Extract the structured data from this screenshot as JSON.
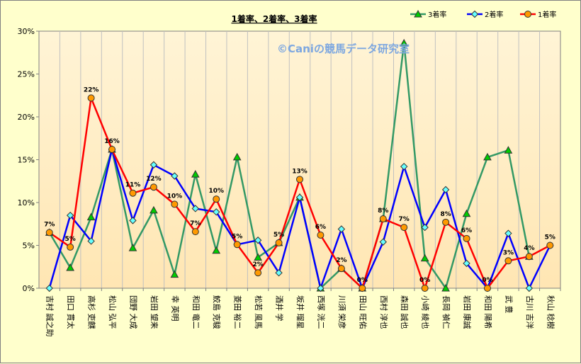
{
  "chart_data": {
    "type": "line",
    "title": "1着率、2着率、3着率",
    "watermark": "©Caniの競馬データ研究室",
    "ylim": [
      0,
      30
    ],
    "yticks": [
      "0%",
      "5%",
      "10%",
      "15%",
      "20%",
      "25%",
      "30%"
    ],
    "categories": [
      "吉村 誠之助",
      "田口 貫太",
      "高杉 吏麒",
      "松山 弘平",
      "団野 大成",
      "岩田 望来",
      "幸 英明",
      "和田 竜二",
      "鮫島 克駿",
      "菱田 裕二",
      "松若 風馬",
      "酒井 学",
      "坂井 瑠星",
      "西塚 洸二",
      "川須 栄彦",
      "田山 旺佑",
      "西村 淳也",
      "森田 誠也",
      "小崎 綾也",
      "長岡 禎仁",
      "岩田 康誠",
      "和田 陽希",
      "武 豊",
      "古川 吉洋",
      "秋山 稔樹"
    ],
    "series": [
      {
        "name": "3着率",
        "color": "#339966",
        "marker": "triangle",
        "marker_fill": "#00cc00",
        "values": [
          6.5,
          2.4,
          8.3,
          16.2,
          4.7,
          9.1,
          1.6,
          13.3,
          4.4,
          15.3,
          3.6,
          5.3,
          10.6,
          0,
          2.3,
          0,
          8.1,
          28.6,
          3.5,
          0,
          8.7,
          15.3,
          16.1,
          3.7,
          null
        ]
      },
      {
        "name": "2着率",
        "color": "#0000ff",
        "marker": "diamond",
        "marker_fill": "#66ffff",
        "values": [
          0,
          8.5,
          5.5,
          16.2,
          7.9,
          14.4,
          13.1,
          9.3,
          8.9,
          5.1,
          5.6,
          1.8,
          10.6,
          0,
          6.9,
          0,
          5.4,
          14.2,
          7.1,
          11.5,
          2.9,
          0,
          6.4,
          0,
          5.0
        ]
      },
      {
        "name": "1着率",
        "color": "#ff0000",
        "marker": "circle",
        "marker_fill": "#ff9900",
        "values": [
          6.5,
          4.8,
          22.2,
          16.2,
          11.1,
          11.8,
          9.8,
          6.6,
          10.4,
          5.1,
          1.8,
          5.3,
          12.7,
          6.2,
          2.3,
          0,
          8.1,
          7.1,
          0,
          7.7,
          5.8,
          0,
          3.2,
          3.7,
          5.0
        ]
      }
    ],
    "data_labels_1st": [
      "7%",
      "5%",
      "22%",
      "16%",
      "11%",
      "12%",
      "10%",
      "7%",
      "10%",
      "5%",
      "2%",
      "5%",
      "13%",
      "6%",
      "2%",
      "0%",
      "8%",
      "7%",
      "0%",
      "8%",
      "6%",
      "0%",
      "3%",
      "4%",
      "5%"
    ],
    "legend_position": "top-right",
    "grid": "vertical",
    "plot_background": "#fff2cc",
    "page_background": "#ffffcc"
  }
}
